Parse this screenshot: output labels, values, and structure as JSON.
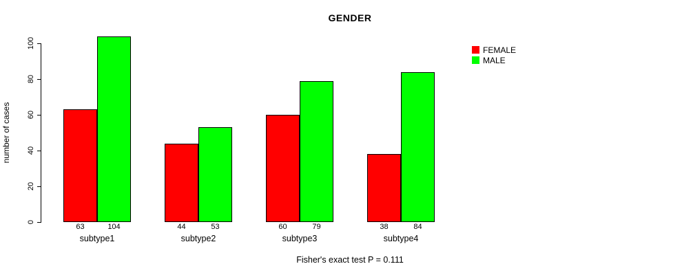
{
  "title": "GENDER",
  "caption": "Fisher's exact test P = 0.111",
  "y_axis": {
    "label": "number of cases",
    "ticks": [
      "0",
      "20",
      "40",
      "60",
      "80",
      "100"
    ]
  },
  "legend": {
    "items": [
      {
        "label": "FEMALE",
        "color": "#ff0000"
      },
      {
        "label": "MALE",
        "color": "#00ff00"
      }
    ]
  },
  "chart_data": {
    "type": "bar",
    "title": "GENDER",
    "xlabel": "",
    "ylabel": "number of cases",
    "ylim": [
      0,
      104
    ],
    "grid": false,
    "legend_position": "top-right",
    "categories": [
      "subtype1",
      "subtype2",
      "subtype3",
      "subtype4"
    ],
    "series": [
      {
        "name": "FEMALE",
        "color": "#ff0000",
        "values": [
          63,
          44,
          60,
          38
        ]
      },
      {
        "name": "MALE",
        "color": "#00ff00",
        "values": [
          104,
          53,
          79,
          84
        ]
      }
    ],
    "annotation": "Fisher's exact test P = 0.111"
  }
}
